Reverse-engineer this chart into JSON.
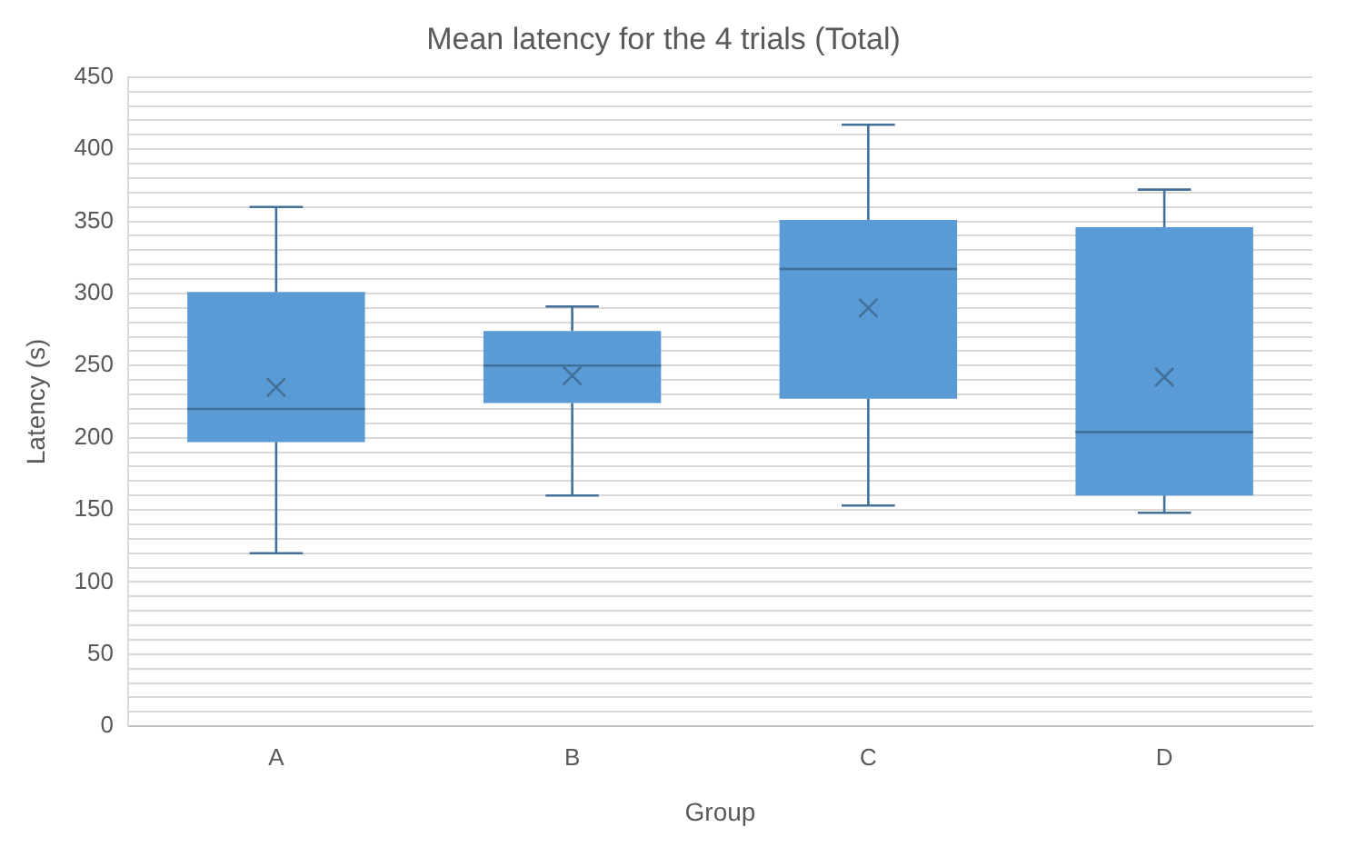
{
  "chart_data": {
    "type": "box",
    "title": "Mean latency for the 4 trials (Total)",
    "xlabel": "Group",
    "ylabel": "Latency (s)",
    "categories": [
      "A",
      "B",
      "C",
      "D"
    ],
    "series": [
      {
        "color": "#5b9bd5",
        "boxes": [
          {
            "low": 120,
            "q1": 197,
            "median": 220,
            "q3": 301,
            "high": 360,
            "mean": 235
          },
          {
            "low": 160,
            "q1": 224,
            "median": 250,
            "q3": 274,
            "high": 291,
            "mean": 243
          },
          {
            "low": 153,
            "q1": 227,
            "median": 317,
            "q3": 351,
            "high": 417,
            "mean": 290
          },
          {
            "low": 148,
            "q1": 160,
            "median": 204,
            "q3": 346,
            "high": 372,
            "mean": 242
          }
        ]
      }
    ],
    "ylim": [
      0,
      450
    ],
    "yticks": [
      0,
      {
        "value": 10,
        "label": null
      },
      {
        "value": 20,
        "label": null
      },
      {
        "value": 30,
        "label": null
      },
      {
        "value": 40,
        "label": null
      },
      50,
      {
        "value": 60,
        "label": null
      },
      {
        "value": 70,
        "label": null
      },
      {
        "value": 80,
        "label": null
      },
      {
        "value": 90,
        "label": null
      },
      100,
      {
        "value": 110,
        "label": null
      },
      {
        "value": 120,
        "label": null
      },
      {
        "value": 130,
        "label": null
      },
      {
        "value": 140,
        "label": null
      },
      150,
      {
        "value": 160,
        "label": null
      },
      {
        "value": 170,
        "label": null
      },
      {
        "value": 180,
        "label": null
      },
      {
        "value": 190,
        "label": null
      },
      200,
      {
        "value": 210,
        "label": null
      },
      {
        "value": 220,
        "label": null
      },
      {
        "value": 230,
        "label": null
      },
      {
        "value": 240,
        "label": null
      },
      250,
      {
        "value": 260,
        "label": null
      },
      {
        "value": 270,
        "label": null
      },
      {
        "value": 280,
        "label": null
      },
      {
        "value": 290,
        "label": null
      },
      300,
      {
        "value": 310,
        "label": null
      },
      {
        "value": 320,
        "label": null
      },
      {
        "value": 330,
        "label": null
      },
      {
        "value": 340,
        "label": null
      },
      350,
      {
        "value": 360,
        "label": null
      },
      {
        "value": 370,
        "label": null
      },
      {
        "value": 380,
        "label": null
      },
      {
        "value": 390,
        "label": null
      },
      400,
      {
        "value": 410,
        "label": null
      },
      {
        "value": 420,
        "label": null
      },
      {
        "value": 430,
        "label": null
      },
      {
        "value": 440,
        "label": null
      },
      450
    ],
    "grid": true,
    "legend": false
  }
}
